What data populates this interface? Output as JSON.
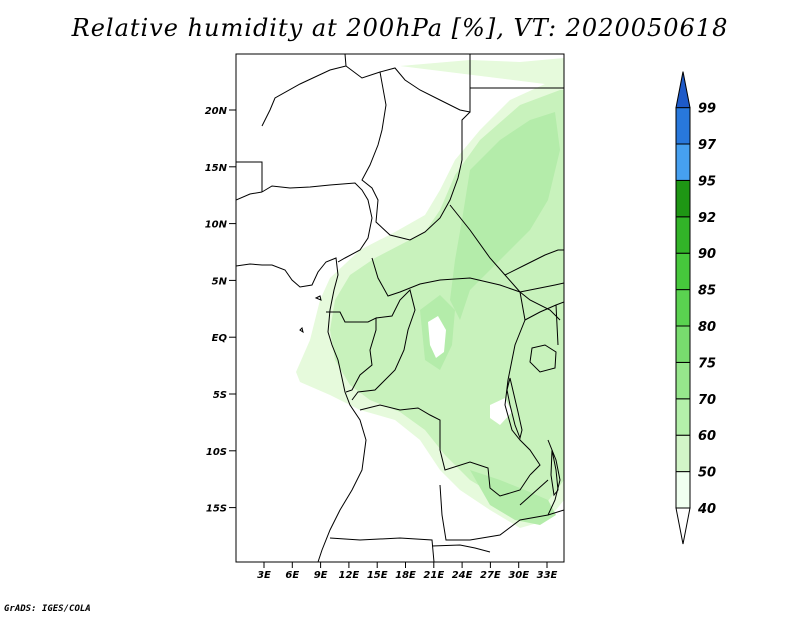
{
  "title": "Relative humidity at 200hPa [%], VT: 2020050618",
  "footer": "GrADS: IGES/COLA",
  "map": {
    "lat_ticks": [
      "20N",
      "15N",
      "10N",
      "5N",
      "EQ",
      "5S",
      "10S",
      "15S"
    ],
    "lon_ticks": [
      "3E",
      "6E",
      "9E",
      "12E",
      "15E",
      "18E",
      "21E",
      "24E",
      "27E",
      "30E",
      "33E"
    ],
    "field": "Relative humidity at 200hPa",
    "shading_description_colors": [
      "#e6fadc",
      "#b4f0aa",
      "#96e68c"
    ]
  },
  "colorbar": {
    "levels": [
      "40",
      "50",
      "60",
      "70",
      "75",
      "80",
      "85",
      "90",
      "92",
      "95",
      "97",
      "99"
    ],
    "colors": [
      "#f0fff0",
      "#d2f5c8",
      "#b4f0aa",
      "#96e68c",
      "#78dc6e",
      "#5ad250",
      "#46c83c",
      "#32b428",
      "#1e9614",
      "#46a0f0",
      "#2878dc",
      "#1e5ac8"
    ]
  }
}
